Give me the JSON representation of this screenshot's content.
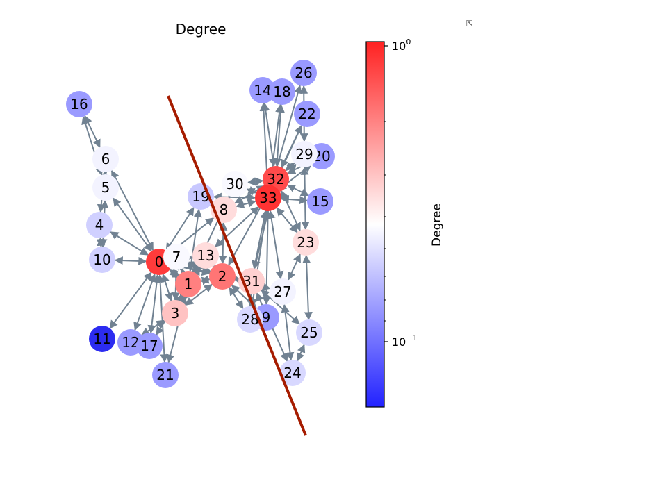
{
  "title": "Degree",
  "colorbar": {
    "label": "Degree",
    "tick_top_base": "10",
    "tick_top_exp": "0",
    "tick_low_base": "10",
    "tick_low_exp": "−1",
    "colors": {
      "high": "#ff3333",
      "mid": "#ffffff",
      "low": "#3333ff"
    }
  },
  "corner_icon": "expand-icon",
  "overlay_line_color": "#a61c00",
  "edge_color": "#718292",
  "nodes": [
    {
      "id": "0",
      "label": "0",
      "color": "#ff3b3b"
    },
    {
      "id": "1",
      "label": "1",
      "color": "#ff8080"
    },
    {
      "id": "2",
      "label": "2",
      "color": "#ff7575"
    },
    {
      "id": "3",
      "label": "3",
      "color": "#ffc2c2"
    },
    {
      "id": "4",
      "label": "4",
      "color": "#d0d0ff"
    },
    {
      "id": "5",
      "label": "5",
      "color": "#f3f3ff"
    },
    {
      "id": "6",
      "label": "6",
      "color": "#f3f3ff"
    },
    {
      "id": "7",
      "label": "7",
      "color": "#f9f9ff"
    },
    {
      "id": "8",
      "label": "8",
      "color": "#ffdcdc"
    },
    {
      "id": "9",
      "label": "9",
      "color": "#9a9aff"
    },
    {
      "id": "10",
      "label": "10",
      "color": "#d0d0ff"
    },
    {
      "id": "11",
      "label": "11",
      "color": "#2c2cf0"
    },
    {
      "id": "12",
      "label": "12",
      "color": "#9a9aff"
    },
    {
      "id": "13",
      "label": "13",
      "color": "#ffdcdc"
    },
    {
      "id": "14",
      "label": "14",
      "color": "#9a9aff"
    },
    {
      "id": "15",
      "label": "15",
      "color": "#9a9aff"
    },
    {
      "id": "16",
      "label": "16",
      "color": "#9a9aff"
    },
    {
      "id": "17",
      "label": "17",
      "color": "#9a9aff"
    },
    {
      "id": "18",
      "label": "18",
      "color": "#9a9aff"
    },
    {
      "id": "19",
      "label": "19",
      "color": "#c8c8ff"
    },
    {
      "id": "20",
      "label": "20",
      "color": "#9a9aff"
    },
    {
      "id": "21",
      "label": "21",
      "color": "#9a9aff"
    },
    {
      "id": "22",
      "label": "22",
      "color": "#9a9aff"
    },
    {
      "id": "23",
      "label": "23",
      "color": "#ffdcdc"
    },
    {
      "id": "24",
      "label": "24",
      "color": "#d8d8ff"
    },
    {
      "id": "25",
      "label": "25",
      "color": "#d8d8ff"
    },
    {
      "id": "26",
      "label": "26",
      "color": "#9a9aff"
    },
    {
      "id": "27",
      "label": "27",
      "color": "#f3f3ff"
    },
    {
      "id": "28",
      "label": "28",
      "color": "#d8d8ff"
    },
    {
      "id": "29",
      "label": "29",
      "color": "#f3f3ff"
    },
    {
      "id": "30",
      "label": "30",
      "color": "#f9f9ff"
    },
    {
      "id": "31",
      "label": "31",
      "color": "#ffd0d0"
    },
    {
      "id": "32",
      "label": "32",
      "color": "#ff4b4b"
    },
    {
      "id": "33",
      "label": "33",
      "color": "#ff3333"
    }
  ],
  "edges": [
    [
      "0",
      "1"
    ],
    [
      "0",
      "2"
    ],
    [
      "0",
      "3"
    ],
    [
      "0",
      "4"
    ],
    [
      "0",
      "5"
    ],
    [
      "0",
      "6"
    ],
    [
      "0",
      "7"
    ],
    [
      "0",
      "8"
    ],
    [
      "0",
      "10"
    ],
    [
      "0",
      "11"
    ],
    [
      "0",
      "12"
    ],
    [
      "0",
      "13"
    ],
    [
      "0",
      "17"
    ],
    [
      "0",
      "19"
    ],
    [
      "0",
      "21"
    ],
    [
      "0",
      "31"
    ],
    [
      "1",
      "2"
    ],
    [
      "1",
      "3"
    ],
    [
      "1",
      "7"
    ],
    [
      "1",
      "13"
    ],
    [
      "1",
      "17"
    ],
    [
      "1",
      "19"
    ],
    [
      "1",
      "21"
    ],
    [
      "1",
      "30"
    ],
    [
      "2",
      "3"
    ],
    [
      "2",
      "7"
    ],
    [
      "2",
      "8"
    ],
    [
      "2",
      "9"
    ],
    [
      "2",
      "13"
    ],
    [
      "2",
      "27"
    ],
    [
      "2",
      "28"
    ],
    [
      "2",
      "32"
    ],
    [
      "3",
      "7"
    ],
    [
      "3",
      "12"
    ],
    [
      "3",
      "13"
    ],
    [
      "4",
      "6"
    ],
    [
      "4",
      "10"
    ],
    [
      "5",
      "6"
    ],
    [
      "5",
      "10"
    ],
    [
      "5",
      "16"
    ],
    [
      "6",
      "16"
    ],
    [
      "8",
      "30"
    ],
    [
      "8",
      "32"
    ],
    [
      "8",
      "33"
    ],
    [
      "9",
      "33"
    ],
    [
      "13",
      "33"
    ],
    [
      "14",
      "32"
    ],
    [
      "14",
      "33"
    ],
    [
      "15",
      "32"
    ],
    [
      "15",
      "33"
    ],
    [
      "18",
      "32"
    ],
    [
      "18",
      "33"
    ],
    [
      "19",
      "33"
    ],
    [
      "20",
      "32"
    ],
    [
      "20",
      "33"
    ],
    [
      "22",
      "32"
    ],
    [
      "22",
      "33"
    ],
    [
      "23",
      "25"
    ],
    [
      "23",
      "27"
    ],
    [
      "23",
      "29"
    ],
    [
      "23",
      "32"
    ],
    [
      "23",
      "33"
    ],
    [
      "24",
      "25"
    ],
    [
      "24",
      "27"
    ],
    [
      "24",
      "31"
    ],
    [
      "25",
      "31"
    ],
    [
      "26",
      "29"
    ],
    [
      "26",
      "33"
    ],
    [
      "27",
      "33"
    ],
    [
      "28",
      "31"
    ],
    [
      "28",
      "33"
    ],
    [
      "29",
      "32"
    ],
    [
      "29",
      "33"
    ],
    [
      "30",
      "32"
    ],
    [
      "30",
      "33"
    ],
    [
      "31",
      "32"
    ],
    [
      "31",
      "33"
    ],
    [
      "32",
      "33"
    ]
  ]
}
